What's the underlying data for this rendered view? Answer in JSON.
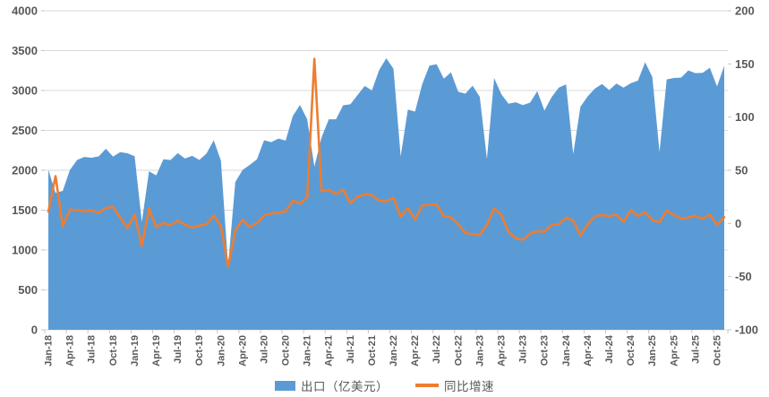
{
  "chart_data": {
    "type": "combo-area-line",
    "title": "",
    "legend_position": "bottom",
    "gridlines": "horizontal",
    "x_tick_interval": 3,
    "categories": [
      "Jan-18",
      "Feb-18",
      "Mar-18",
      "Apr-18",
      "May-18",
      "Jun-18",
      "Jul-18",
      "Aug-18",
      "Sep-18",
      "Oct-18",
      "Nov-18",
      "Dec-18",
      "Jan-19",
      "Feb-19",
      "Mar-19",
      "Apr-19",
      "May-19",
      "Jun-19",
      "Jul-19",
      "Aug-19",
      "Sep-19",
      "Oct-19",
      "Nov-19",
      "Dec-19",
      "Jan-20",
      "Feb-20",
      "Mar-20",
      "Apr-20",
      "May-20",
      "Jun-20",
      "Jul-20",
      "Aug-20",
      "Sep-20",
      "Oct-20",
      "Nov-20",
      "Dec-20",
      "Jan-21",
      "Feb-21",
      "Mar-21",
      "Apr-21",
      "May-21",
      "Jun-21",
      "Jul-21",
      "Aug-21",
      "Sep-21",
      "Oct-21",
      "Nov-21",
      "Dec-21",
      "Jan-22",
      "Feb-22",
      "Mar-22",
      "Apr-22",
      "May-22",
      "Jun-22",
      "Jul-22",
      "Aug-22",
      "Sep-22",
      "Oct-22",
      "Nov-22",
      "Dec-22",
      "Jan-23",
      "Feb-23",
      "Mar-23",
      "Apr-23",
      "May-23",
      "Jun-23",
      "Jul-23",
      "Aug-23",
      "Sep-23",
      "Oct-23",
      "Nov-23",
      "Dec-23",
      "Jan-24",
      "Feb-24",
      "Mar-24",
      "Apr-24",
      "May-24",
      "Jun-24",
      "Jul-24",
      "Aug-24",
      "Sep-24",
      "Oct-24",
      "Nov-24",
      "Dec-24",
      "Jan-25",
      "Feb-25",
      "Mar-25",
      "Apr-25",
      "May-25",
      "Jun-25",
      "Jul-25",
      "Aug-25",
      "Sep-25",
      "Oct-25",
      "Nov-25"
    ],
    "series": [
      {
        "name": "出口（亿美元）",
        "type": "area",
        "axis": "left",
        "color": "#5b9bd5",
        "values": [
          2005,
          1716,
          1741,
          2004,
          2129,
          2167,
          2157,
          2174,
          2269,
          2172,
          2228,
          2213,
          2176,
          1352,
          1987,
          1935,
          2138,
          2129,
          2215,
          2148,
          2181,
          2129,
          2210,
          2377,
          2121,
          803,
          1852,
          2003,
          2068,
          2136,
          2376,
          2353,
          2398,
          2372,
          2681,
          2819,
          2639,
          2046,
          2411,
          2639,
          2639,
          2814,
          2827,
          2943,
          3057,
          3002,
          3255,
          3405,
          3273,
          2174,
          2761,
          2736,
          3082,
          3312,
          3330,
          3149,
          3228,
          2984,
          2961,
          3061,
          2921,
          2142,
          3156,
          2954,
          2835,
          2853,
          2818,
          2849,
          2991,
          2748,
          2919,
          3036,
          3077,
          2203,
          2797,
          2925,
          3024,
          3081,
          3006,
          3087,
          3037,
          3091,
          3123,
          3356,
          3170,
          2230,
          3139,
          3157,
          3161,
          3252,
          3218,
          3222,
          3285,
          3052,
          3307
        ]
      },
      {
        "name": "同比增速",
        "type": "line",
        "axis": "right",
        "color": "#ed7d31",
        "values": [
          11.1,
          44.5,
          -2.7,
          12.9,
          12.6,
          11.3,
          12.2,
          9.8,
          14.5,
          15.6,
          5.4,
          -4.4,
          8.5,
          -21.2,
          14.1,
          -3.4,
          0.4,
          -1.8,
          2.7,
          -1.2,
          -3.9,
          -2.0,
          -0.8,
          7.4,
          -2.5,
          -40.6,
          -6.8,
          3.5,
          -3.3,
          0.3,
          7.3,
          9.5,
          10.0,
          11.4,
          21.3,
          18.6,
          24.4,
          154.8,
          30.2,
          31.7,
          27.6,
          31.7,
          19.0,
          25.1,
          27.5,
          26.6,
          21.4,
          20.8,
          24.0,
          6.3,
          14.5,
          3.7,
          16.8,
          17.7,
          17.8,
          7.0,
          5.6,
          -0.6,
          -9.0,
          -10.1,
          -10.8,
          -1.5,
          14.3,
          8.0,
          -8.0,
          -13.9,
          -15.4,
          -9.5,
          -7.3,
          -7.9,
          -1.4,
          -0.8,
          5.3,
          2.8,
          -11.4,
          -1.0,
          6.7,
          8.0,
          6.7,
          8.4,
          1.5,
          12.5,
          7.0,
          10.5,
          3.0,
          1.2,
          12.2,
          7.9,
          4.5,
          5.5,
          7.1,
          4.4,
          8.2,
          -1.3,
          5.9
        ]
      }
    ],
    "left_axis": {
      "min": 0,
      "max": 4000,
      "step": 500,
      "tick_labels": [
        "0",
        "500",
        "1000",
        "1500",
        "2000",
        "2500",
        "3000",
        "3500",
        "4000"
      ]
    },
    "right_axis": {
      "min": -100,
      "max": 200,
      "step": 50,
      "tick_labels": [
        "-100",
        "-50",
        "0",
        "50",
        "100",
        "150",
        "200"
      ]
    }
  },
  "legend": {
    "exports_label": "出口（亿美元）",
    "growth_label": "同比增速"
  },
  "colors": {
    "area": "#5b9bd5",
    "line": "#ed7d31",
    "gridline": "#d9d9d9",
    "tick": "#c6c6c6",
    "axis_text": "#595959",
    "background": "#ffffff"
  }
}
